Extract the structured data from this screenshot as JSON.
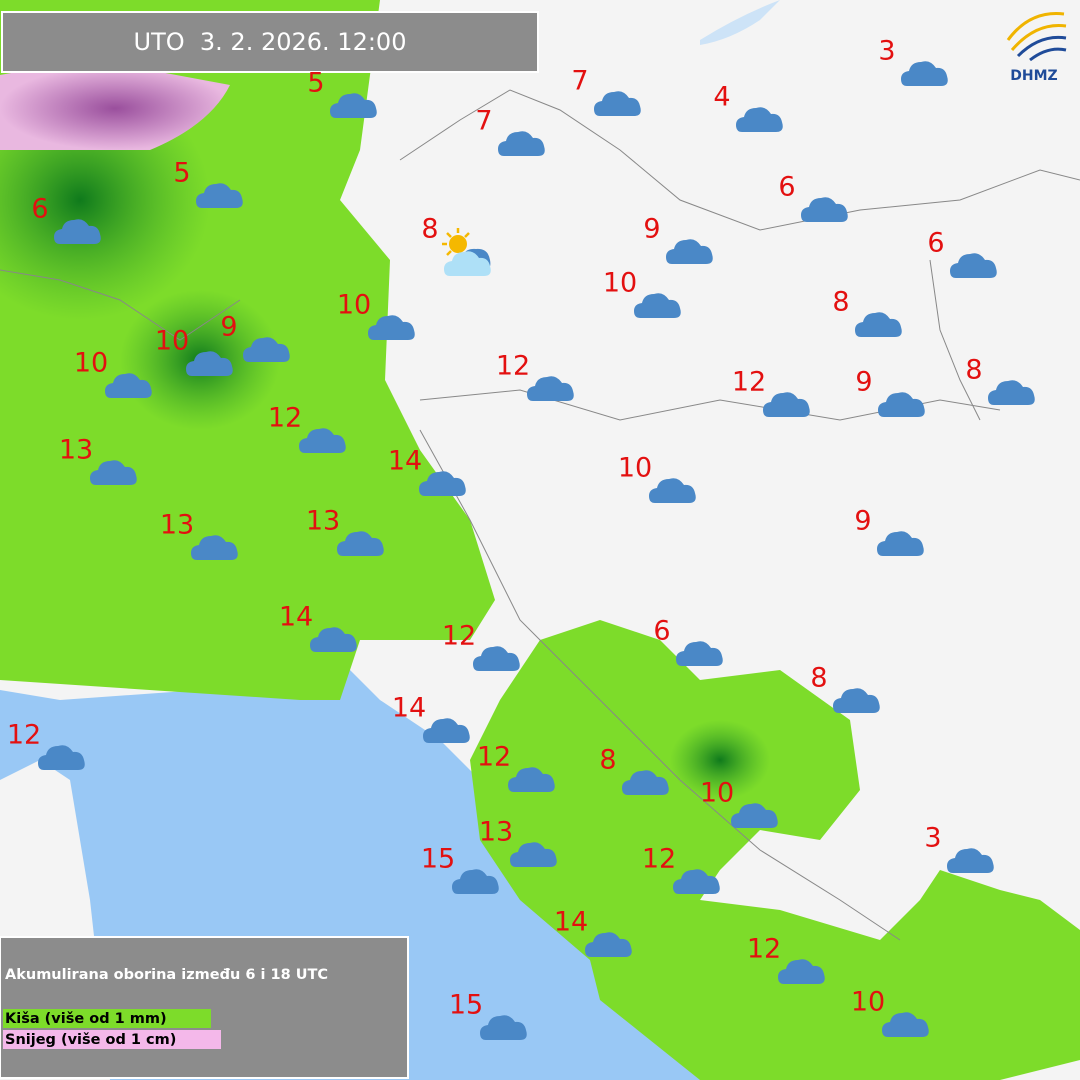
{
  "header": {
    "title": "UTO  3. 2. 2026. 12:00"
  },
  "logo": {
    "text": "DHMZ"
  },
  "legend": {
    "title": "Akumulirana oborina između 6 i 18 UTC",
    "items": [
      "Kiša (više od 1 mm)",
      "Snijeg (više od 1 cm)"
    ]
  },
  "stations": [
    5,
    7,
    4,
    3,
    7,
    5,
    6,
    6,
    8,
    9,
    6,
    10,
    8,
    10,
    9,
    10,
    10,
    12,
    8,
    12,
    9,
    12,
    13,
    14,
    10,
    13,
    13,
    9,
    14,
    6,
    12,
    8,
    14,
    12,
    12,
    8,
    10,
    13,
    3,
    15,
    12,
    14,
    12,
    15,
    10
  ]
}
